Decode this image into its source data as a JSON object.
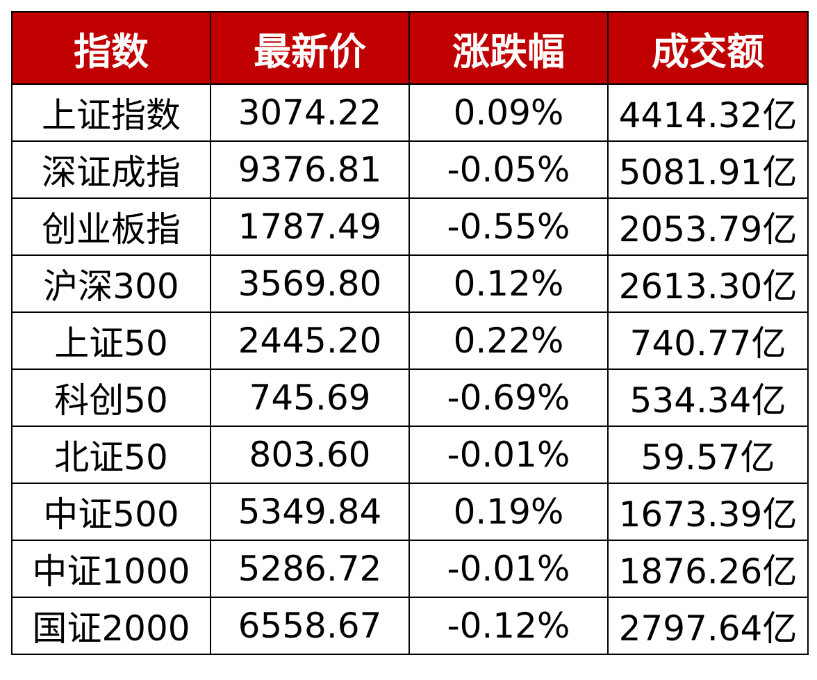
{
  "colors": {
    "header_bg": "#c00000",
    "header_text": "#ffffff",
    "up": "#ff0000",
    "down": "#008c00",
    "neutral": "#000000"
  },
  "table": {
    "headers": [
      "指数",
      "最新价",
      "涨跌幅",
      "成交额"
    ],
    "rows": [
      {
        "name": "上证指数",
        "price": "3074.22",
        "change": "0.09%",
        "turnover": "4414.32亿",
        "direction": "up"
      },
      {
        "name": "深证成指",
        "price": "9376.81",
        "change": "-0.05%",
        "turnover": "5081.91亿",
        "direction": "down"
      },
      {
        "name": "创业板指",
        "price": "1787.49",
        "change": "-0.55%",
        "turnover": "2053.79亿",
        "direction": "down"
      },
      {
        "name": "沪深300",
        "price": "3569.80",
        "change": "0.12%",
        "turnover": "2613.30亿",
        "direction": "up"
      },
      {
        "name": "上证50",
        "price": "2445.20",
        "change": "0.22%",
        "turnover": "740.77亿",
        "direction": "up"
      },
      {
        "name": "科创50",
        "price": "745.69",
        "change": "-0.69%",
        "turnover": "534.34亿",
        "direction": "down"
      },
      {
        "name": "北证50",
        "price": "803.60",
        "change": "-0.01%",
        "turnover": "59.57亿",
        "direction": "down"
      },
      {
        "name": "中证500",
        "price": "5349.84",
        "change": "0.19%",
        "turnover": "1673.39亿",
        "direction": "up"
      },
      {
        "name": "中证1000",
        "price": "5286.72",
        "change": "-0.01%",
        "turnover": "1876.26亿",
        "direction": "down"
      },
      {
        "name": "国证2000",
        "price": "6558.67",
        "change": "-0.12%",
        "turnover": "2797.64亿",
        "direction": "down"
      }
    ]
  }
}
